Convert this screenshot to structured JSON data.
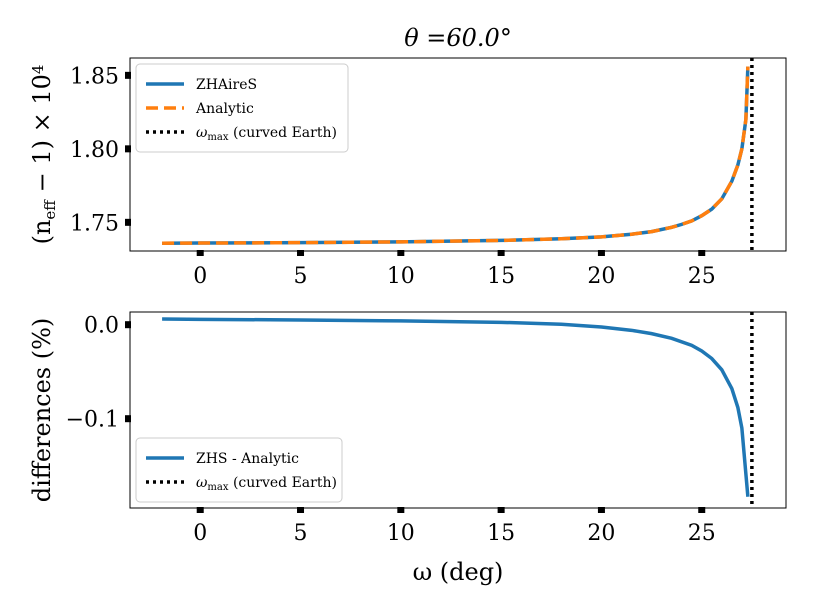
{
  "chart_data": [
    {
      "type": "line",
      "title": "θ =60.0°",
      "xlabel": "",
      "ylabel": "(n",
      "ylabel_sub": "eff",
      "ylabel_rest": " − 1) × 10",
      "ylabel_sup": "4",
      "xlim": [
        -3.5,
        29.2
      ],
      "ylim": [
        1.7305,
        1.8618
      ],
      "xticks": [
        0,
        5,
        10,
        15,
        20,
        25
      ],
      "xticklabels": [
        "0",
        "5",
        "10",
        "15",
        "20",
        "25"
      ],
      "yticks": [
        1.75,
        1.8,
        1.85
      ],
      "yticklabels": [
        "1.75",
        "1.80",
        "1.85"
      ],
      "series": [
        {
          "name": "ZHAireS",
          "color": "#1f77b4",
          "style": "solid",
          "x": [
            -1.9,
            0,
            5,
            10,
            15,
            18,
            20,
            21.5,
            22.5,
            23.5,
            24,
            24.5,
            25,
            25.5,
            26,
            26.5,
            26.8,
            27,
            27.2,
            27.3
          ],
          "y": [
            1.7358,
            1.7359,
            1.7362,
            1.7367,
            1.7377,
            1.7388,
            1.7401,
            1.7419,
            1.7437,
            1.7466,
            1.7486,
            1.751,
            1.7545,
            1.759,
            1.766,
            1.778,
            1.789,
            1.8,
            1.82,
            1.856
          ]
        },
        {
          "name": "Analytic",
          "color": "#ff7f0e",
          "style": "dashed",
          "x": [
            -1.9,
            0,
            5,
            10,
            15,
            18,
            20,
            21.5,
            22.5,
            23.5,
            24,
            24.5,
            25,
            25.5,
            26,
            26.5,
            26.8,
            27,
            27.2,
            27.3
          ],
          "y": [
            1.7358,
            1.7359,
            1.7362,
            1.7367,
            1.7377,
            1.7388,
            1.7401,
            1.7419,
            1.7437,
            1.7466,
            1.7486,
            1.751,
            1.7545,
            1.759,
            1.766,
            1.778,
            1.789,
            1.8,
            1.82,
            1.856
          ]
        }
      ],
      "vline": {
        "x": 27.5,
        "name": "ω",
        "name_sub": "max",
        "name_rest": " (curved Earth)",
        "color": "#000000",
        "style": "dotted"
      },
      "legend": "top-left"
    },
    {
      "type": "line",
      "title": "",
      "xlabel": "ω (deg)",
      "ylabel": "differences (%)",
      "xlim": [
        -3.5,
        29.2
      ],
      "ylim": [
        -0.195,
        0.0135
      ],
      "xticks": [
        0,
        5,
        10,
        15,
        20,
        25
      ],
      "xticklabels": [
        "0",
        "5",
        "10",
        "15",
        "20",
        "25"
      ],
      "yticks": [
        0.0,
        -0.1
      ],
      "yticklabels": [
        "0.0",
        "−0.1"
      ],
      "series": [
        {
          "name": "ZHS - Analytic",
          "color": "#1f77b4",
          "style": "solid",
          "x": [
            -1.9,
            0,
            5,
            10,
            15,
            18,
            20,
            21.5,
            22.5,
            23.5,
            24.5,
            25,
            25.5,
            26,
            26.5,
            26.8,
            27,
            27.3
          ],
          "y": [
            0.006,
            0.0057,
            0.005,
            0.004,
            0.0025,
            0.0005,
            -0.0025,
            -0.006,
            -0.0095,
            -0.0145,
            -0.022,
            -0.028,
            -0.036,
            -0.048,
            -0.068,
            -0.088,
            -0.11,
            -0.183
          ]
        }
      ],
      "vline": {
        "x": 27.5,
        "name": "ω",
        "name_sub": "max",
        "name_rest": " (curved Earth)",
        "color": "#000000",
        "style": "dotted"
      },
      "legend": "bottom-left"
    }
  ]
}
